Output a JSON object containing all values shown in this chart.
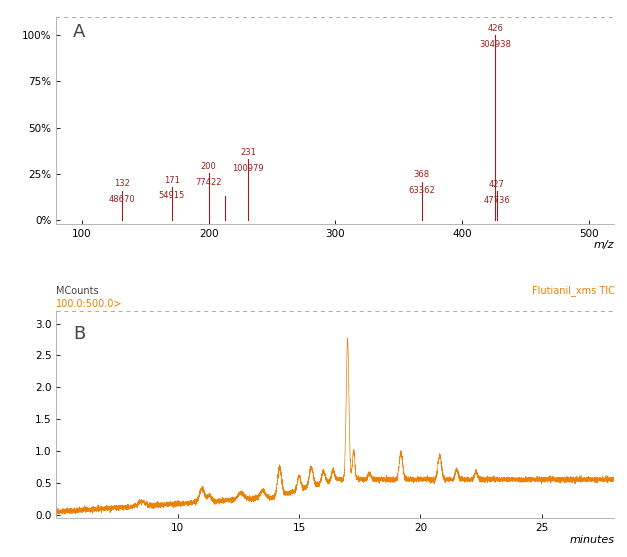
{
  "panel_A_label": "A",
  "panel_B_label": "B",
  "ms_color": "#9B2020",
  "chrom_color": "#E8820A",
  "background_color": "#FFFFFF",
  "ms_peaks": [
    {
      "mz": 132,
      "intensity": 16.0,
      "label1": "132",
      "label2": "48670"
    },
    {
      "mz": 171,
      "intensity": 18.0,
      "label1": "171",
      "label2": "54915"
    },
    {
      "mz": 200,
      "intensity": 25.5,
      "label1": "200",
      "label2": "77422"
    },
    {
      "mz": 213,
      "intensity": 13.0,
      "label1": "",
      "label2": ""
    },
    {
      "mz": 231,
      "intensity": 33.0,
      "label1": "231",
      "label2": "100979"
    },
    {
      "mz": 368,
      "intensity": 20.8,
      "label1": "368",
      "label2": "63362"
    },
    {
      "mz": 426,
      "intensity": 100.0,
      "label1": "426",
      "label2": "304938"
    },
    {
      "mz": 427,
      "intensity": 15.7,
      "label1": "427",
      "label2": "47736"
    }
  ],
  "ms_xlim": [
    80,
    520
  ],
  "ms_ylim": [
    -2,
    110
  ],
  "ms_xticks": [
    100,
    200,
    300,
    400,
    500
  ],
  "ms_yticks": [
    0,
    25,
    50,
    75,
    100
  ],
  "ms_ytick_labels": [
    "0%",
    "25%",
    "50%",
    "75%",
    "100%"
  ],
  "ms_xlabel": "m/z",
  "chrom_xlim": [
    5,
    28
  ],
  "chrom_ylim": [
    -0.05,
    3.2
  ],
  "chrom_yticks": [
    0.0,
    0.5,
    1.0,
    1.5,
    2.0,
    2.5,
    3.0
  ],
  "chrom_xticks": [
    10,
    15,
    20,
    25
  ],
  "chrom_xlabel": "minutes",
  "chrom_ylabel": "MCounts",
  "chrom_legend": "Flutianil_xms TIC",
  "chrom_filter_label": "100.0:500.0>"
}
